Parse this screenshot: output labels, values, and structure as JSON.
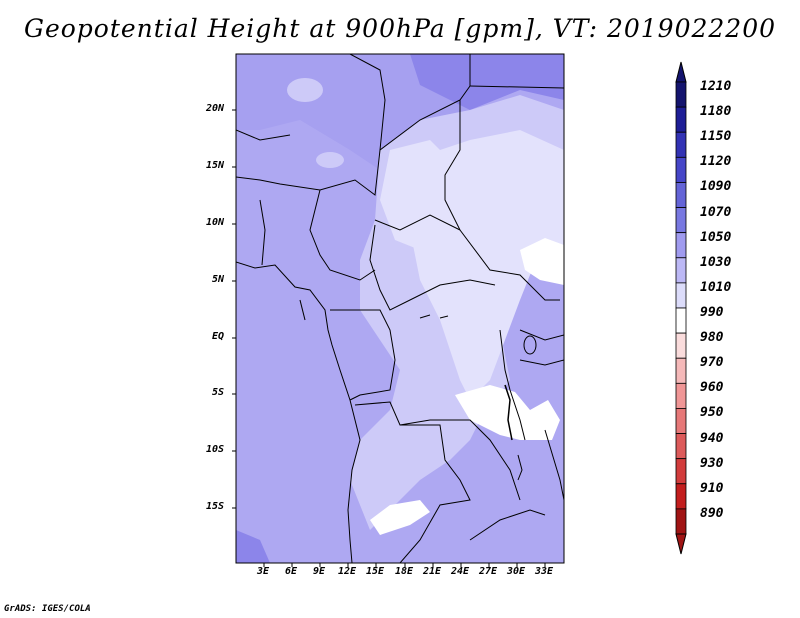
{
  "title": "Geopotential Height at 900hPa [gpm], VT: 2019022200",
  "credit": "GrADS: IGES/COLA",
  "map": {
    "region": "Central Africa",
    "lat_labels": [
      "20N",
      "15N",
      "10N",
      "5N",
      "EQ",
      "5S",
      "10S",
      "15S"
    ],
    "lon_labels": [
      "3E",
      "6E",
      "9E",
      "12E",
      "15E",
      "18E",
      "21E",
      "24E",
      "27E",
      "30E",
      "33E"
    ]
  },
  "colorbar": {
    "labels": [
      "1210",
      "1180",
      "1150",
      "1120",
      "1090",
      "1070",
      "1050",
      "1030",
      "1010",
      "990",
      "980",
      "970",
      "960",
      "950",
      "940",
      "930",
      "910",
      "890"
    ],
    "colors": [
      "#14146e",
      "#1e1e96",
      "#3232b4",
      "#4646c8",
      "#6464d7",
      "#7878e1",
      "#a09bef",
      "#bcb8f5",
      "#dcdcfa",
      "#ffffff",
      "#fadcdc",
      "#f5b9b9",
      "#f09696",
      "#e67878",
      "#dc5a5a",
      "#d23c3c",
      "#c31e1e",
      "#a01414"
    ]
  },
  "fill_colors": {
    "dark": "#8c85ea",
    "mid": "#aea8f2",
    "light": "#cdcaf8",
    "pale": "#e3e2fc",
    "white": "#ffffff"
  }
}
